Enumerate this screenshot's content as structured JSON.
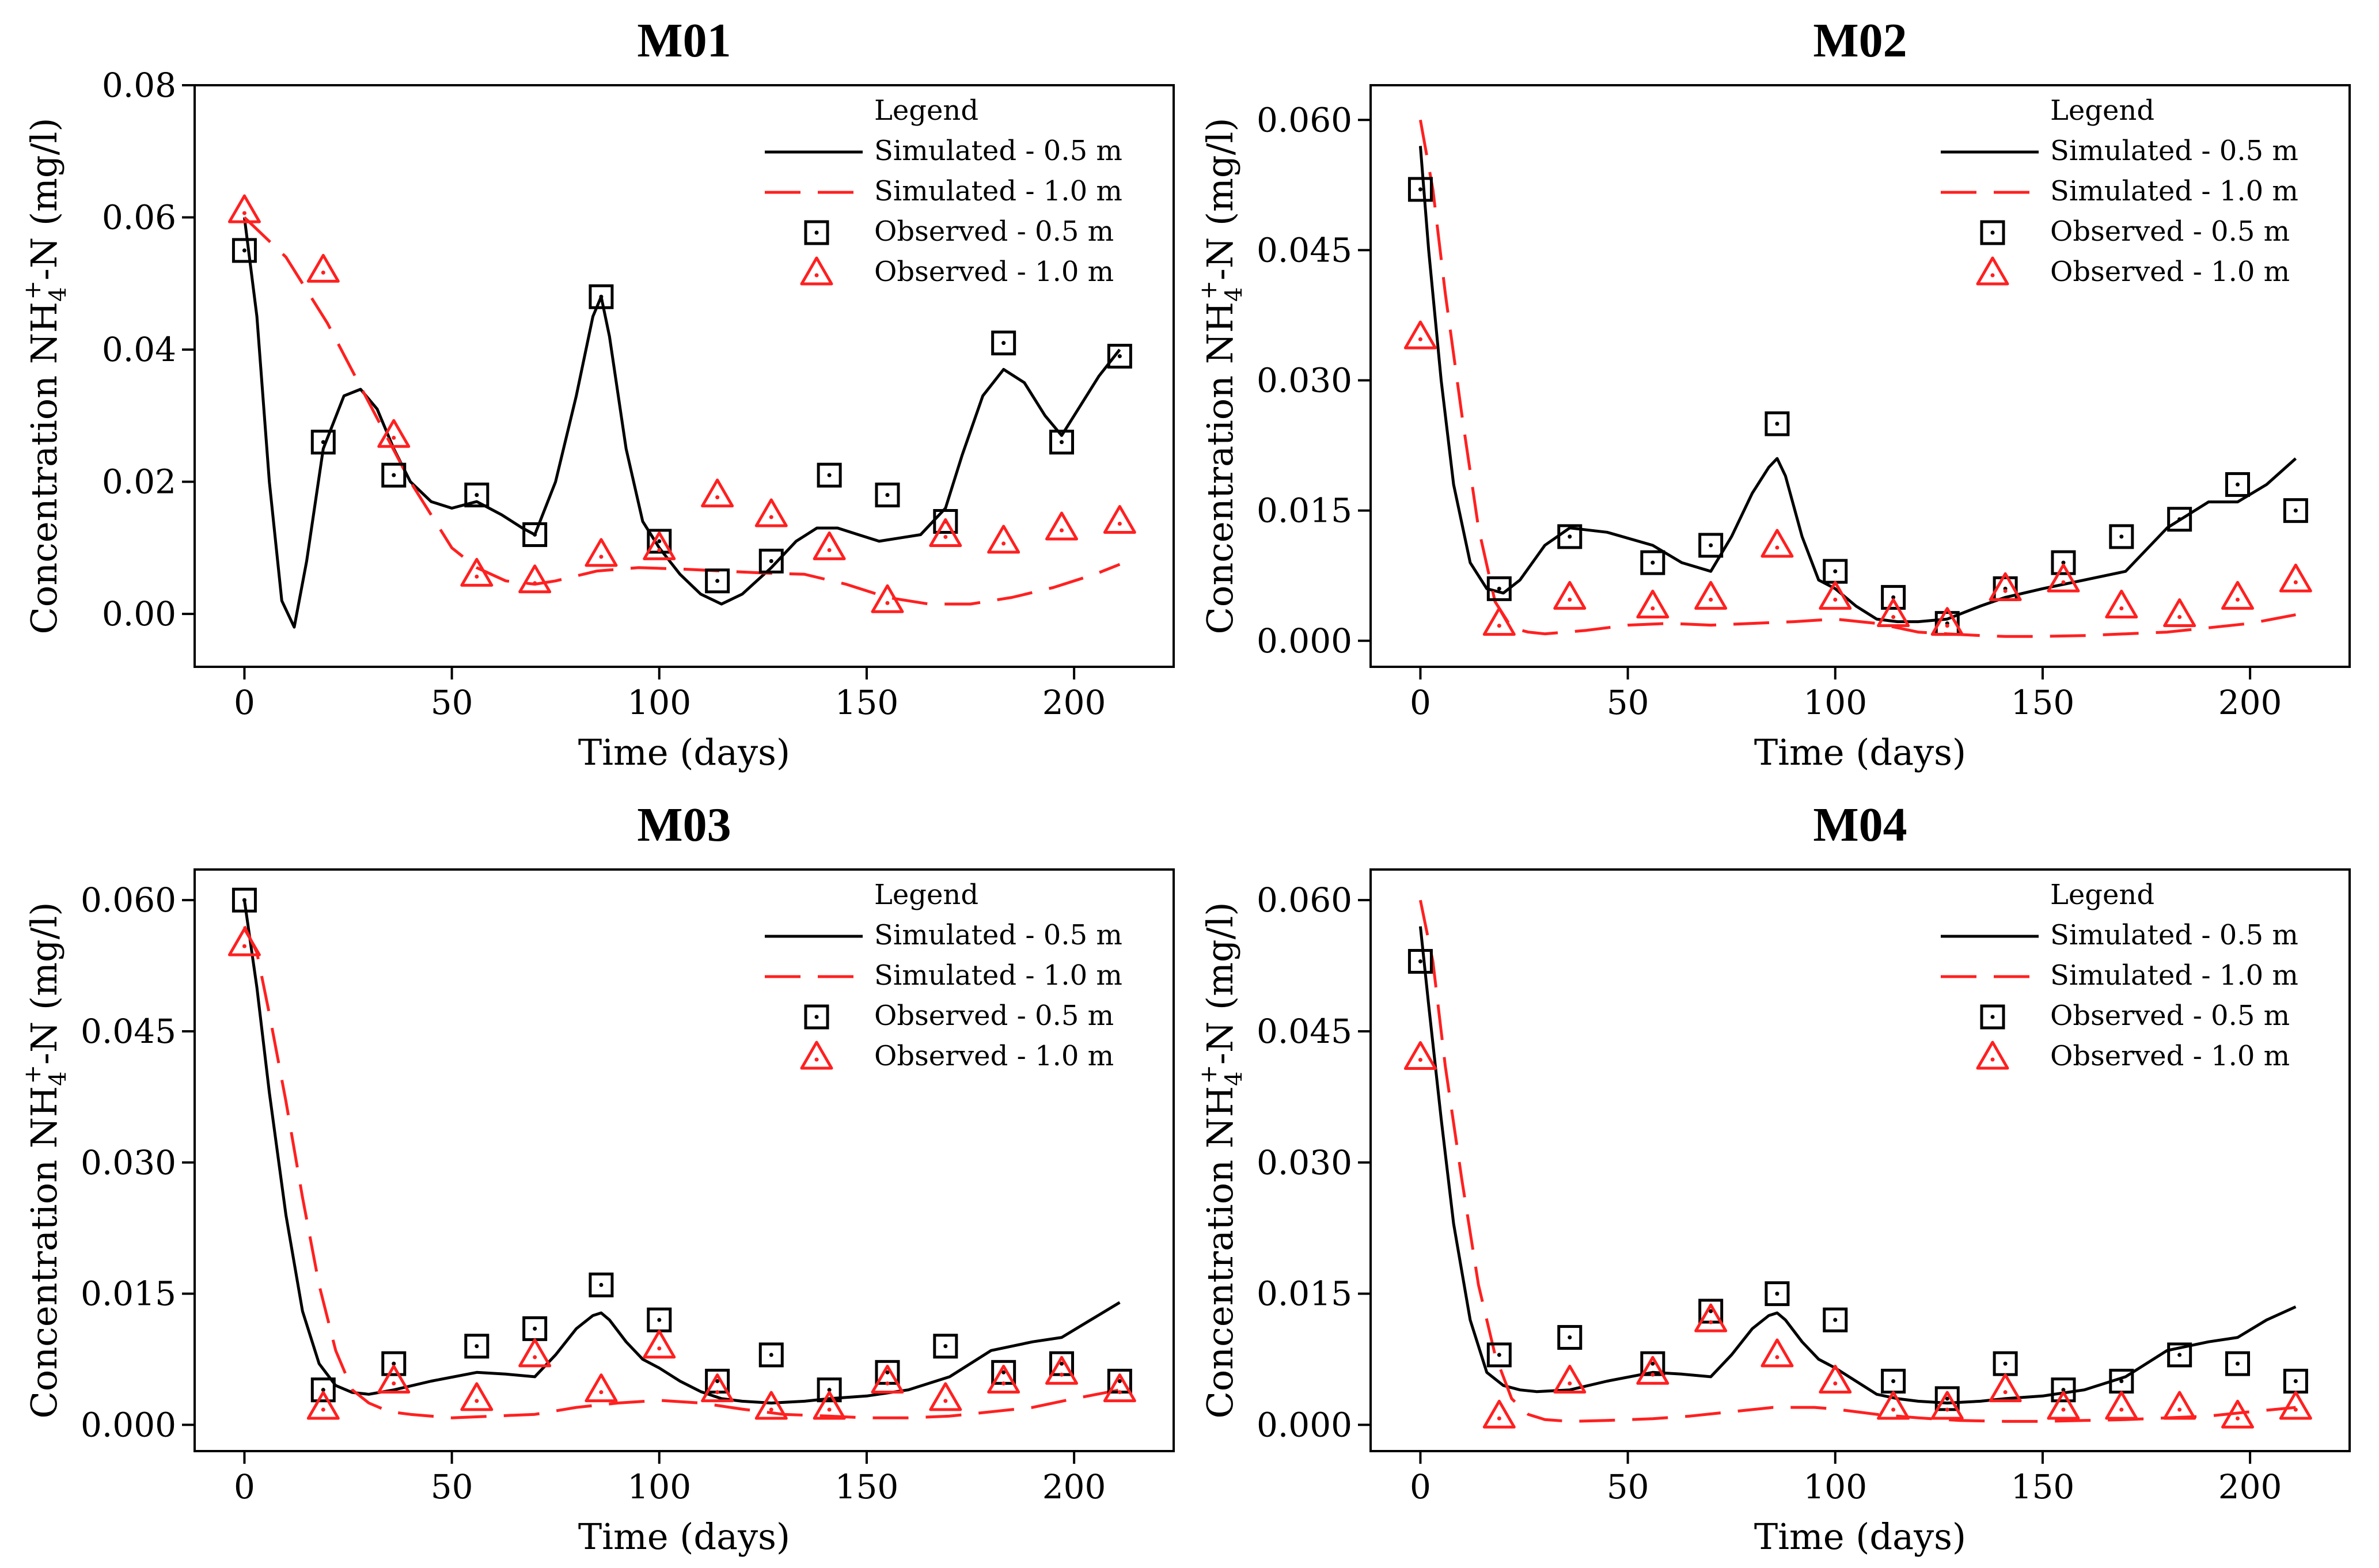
{
  "colors": {
    "sim_05": "#000000",
    "sim_10": "#ff2020",
    "obs_05": "#000000",
    "obs_10": "#ff2020"
  },
  "legend": {
    "title": "Legend",
    "entries": [
      "Simulated - 0.5 m",
      "Simulated - 1.0 m",
      "Observed - 0.5 m",
      "Observed - 1.0 m"
    ]
  },
  "chart_data": [
    {
      "type": "line",
      "title": "M01",
      "xlabel": "Time (days)",
      "ylabel": "Concentration NH4+-N (mg/l)",
      "xlim": [
        -12,
        224
      ],
      "ylim": [
        -0.008,
        0.08
      ],
      "xticks": [
        0,
        50,
        100,
        150,
        200
      ],
      "yticks": [
        0.0,
        0.02,
        0.04,
        0.06,
        0.08
      ],
      "ytick_labels": [
        "0.00",
        "0.02",
        "0.04",
        "0.06",
        "0.08"
      ],
      "series": [
        {
          "name": "Simulated - 0.5 m",
          "kind": "line",
          "style": "solid",
          "x": [
            0,
            3,
            6,
            9,
            12,
            15,
            19,
            24,
            28,
            32,
            36,
            40,
            45,
            50,
            56,
            62,
            67,
            70,
            75,
            80,
            84,
            86,
            88,
            92,
            96,
            100,
            105,
            110,
            115,
            120,
            127,
            133,
            138,
            143,
            148,
            153,
            158,
            163,
            169,
            173,
            178,
            183,
            188,
            193,
            197,
            201,
            206,
            211
          ],
          "y": [
            0.06,
            0.045,
            0.02,
            0.002,
            -0.002,
            0.008,
            0.025,
            0.033,
            0.034,
            0.031,
            0.025,
            0.02,
            0.017,
            0.016,
            0.017,
            0.015,
            0.013,
            0.012,
            0.02,
            0.033,
            0.045,
            0.048,
            0.042,
            0.025,
            0.014,
            0.01,
            0.006,
            0.003,
            0.0015,
            0.003,
            0.007,
            0.011,
            0.013,
            0.013,
            0.012,
            0.011,
            0.0115,
            0.012,
            0.016,
            0.024,
            0.033,
            0.037,
            0.035,
            0.03,
            0.027,
            0.031,
            0.036,
            0.04
          ]
        },
        {
          "name": "Simulated - 1.0 m",
          "kind": "line",
          "style": "dashed",
          "x": [
            0,
            10,
            20,
            30,
            40,
            50,
            56,
            63,
            70,
            75,
            85,
            95,
            105,
            115,
            125,
            135,
            145,
            155,
            165,
            175,
            185,
            195,
            205,
            211
          ],
          "y": [
            0.06,
            0.054,
            0.044,
            0.032,
            0.02,
            0.01,
            0.007,
            0.005,
            0.0045,
            0.005,
            0.0065,
            0.007,
            0.0068,
            0.0065,
            0.0062,
            0.006,
            0.0045,
            0.0025,
            0.0015,
            0.0015,
            0.0025,
            0.004,
            0.006,
            0.0075
          ]
        },
        {
          "name": "Observed - 0.5 m",
          "kind": "marker",
          "marker": "square",
          "x": [
            0,
            19,
            36,
            56,
            70,
            86,
            100,
            114,
            127,
            141,
            155,
            169,
            183,
            197,
            211
          ],
          "y": [
            0.055,
            0.026,
            0.021,
            0.018,
            0.012,
            0.048,
            0.011,
            0.005,
            0.008,
            0.021,
            0.018,
            0.014,
            0.041,
            0.026,
            0.039
          ]
        },
        {
          "name": "Observed - 1.0 m",
          "kind": "marker",
          "marker": "triangle",
          "x": [
            0,
            19,
            36,
            56,
            70,
            86,
            100,
            114,
            127,
            141,
            155,
            169,
            183,
            197,
            211
          ],
          "y": [
            0.061,
            0.052,
            0.027,
            0.006,
            0.005,
            0.009,
            0.01,
            0.018,
            0.015,
            0.01,
            0.002,
            0.012,
            0.011,
            0.013,
            0.014
          ]
        }
      ]
    },
    {
      "type": "line",
      "title": "M02",
      "xlabel": "Time (days)",
      "ylabel": "Concentration NH4+-N (mg/l)",
      "xlim": [
        -12,
        224
      ],
      "ylim": [
        -0.003,
        0.064
      ],
      "xticks": [
        0,
        50,
        100,
        150,
        200
      ],
      "yticks": [
        0.0,
        0.015,
        0.03,
        0.045,
        0.06
      ],
      "ytick_labels": [
        "0.000",
        "0.015",
        "0.030",
        "0.045",
        "0.060"
      ],
      "series": [
        {
          "name": "Simulated - 0.5 m",
          "kind": "line",
          "style": "solid",
          "x": [
            0,
            2,
            5,
            8,
            12,
            16,
            20,
            24,
            30,
            36,
            45,
            56,
            63,
            70,
            75,
            80,
            84,
            86,
            88,
            92,
            96,
            100,
            105,
            110,
            115,
            120,
            127,
            135,
            141,
            150,
            160,
            170,
            180,
            190,
            197,
            204,
            211
          ],
          "y": [
            0.057,
            0.045,
            0.03,
            0.018,
            0.009,
            0.006,
            0.0055,
            0.007,
            0.011,
            0.013,
            0.0125,
            0.011,
            0.009,
            0.008,
            0.012,
            0.017,
            0.02,
            0.021,
            0.019,
            0.012,
            0.007,
            0.006,
            0.004,
            0.0025,
            0.0022,
            0.0022,
            0.0025,
            0.004,
            0.005,
            0.006,
            0.007,
            0.008,
            0.013,
            0.016,
            0.016,
            0.018,
            0.021
          ]
        },
        {
          "name": "Simulated - 1.0 m",
          "kind": "line",
          "style": "dashed",
          "x": [
            0,
            3,
            6,
            10,
            14,
            18,
            22,
            26,
            30,
            40,
            50,
            60,
            70,
            80,
            90,
            100,
            110,
            120,
            127,
            135,
            141,
            150,
            160,
            170,
            180,
            190,
            200,
            211
          ],
          "y": [
            0.06,
            0.052,
            0.04,
            0.026,
            0.013,
            0.0045,
            0.0015,
            0.001,
            0.0008,
            0.0012,
            0.0018,
            0.002,
            0.0018,
            0.002,
            0.0022,
            0.0025,
            0.002,
            0.001,
            0.0008,
            0.0006,
            0.0005,
            0.0005,
            0.0006,
            0.0008,
            0.001,
            0.0015,
            0.002,
            0.003
          ]
        },
        {
          "name": "Observed - 0.5 m",
          "kind": "marker",
          "marker": "square",
          "x": [
            0,
            19,
            36,
            56,
            70,
            86,
            100,
            114,
            127,
            141,
            155,
            169,
            183,
            197,
            211
          ],
          "y": [
            0.052,
            0.006,
            0.012,
            0.009,
            0.011,
            0.025,
            0.008,
            0.005,
            0.002,
            0.006,
            0.009,
            0.012,
            0.014,
            0.018,
            0.015
          ]
        },
        {
          "name": "Observed - 1.0 m",
          "kind": "marker",
          "marker": "triangle",
          "x": [
            0,
            19,
            36,
            56,
            70,
            86,
            100,
            114,
            127,
            141,
            155,
            169,
            183,
            197,
            211
          ],
          "y": [
            0.035,
            0.002,
            0.005,
            0.004,
            0.005,
            0.011,
            0.005,
            0.003,
            0.002,
            0.006,
            0.007,
            0.004,
            0.003,
            0.005,
            0.007
          ]
        }
      ]
    },
    {
      "type": "line",
      "title": "M03",
      "xlabel": "Time (days)",
      "ylabel": "Concentration NH4+-N (mg/l)",
      "xlim": [
        -12,
        224
      ],
      "ylim": [
        -0.003,
        0.0635
      ],
      "xticks": [
        0,
        50,
        100,
        150,
        200
      ],
      "yticks": [
        0.0,
        0.015,
        0.03,
        0.045,
        0.06
      ],
      "ytick_labels": [
        "0.000",
        "0.015",
        "0.030",
        "0.045",
        "0.060"
      ],
      "series": [
        {
          "name": "Simulated - 0.5 m",
          "kind": "line",
          "style": "solid",
          "x": [
            0,
            3,
            6,
            10,
            14,
            18,
            22,
            26,
            30,
            36,
            45,
            56,
            63,
            70,
            75,
            80,
            84,
            86,
            88,
            92,
            96,
            100,
            105,
            110,
            115,
            120,
            127,
            135,
            141,
            150,
            160,
            170,
            180,
            190,
            197,
            204,
            211
          ],
          "y": [
            0.06,
            0.05,
            0.038,
            0.024,
            0.013,
            0.007,
            0.0045,
            0.0037,
            0.0035,
            0.004,
            0.005,
            0.006,
            0.0058,
            0.0055,
            0.008,
            0.011,
            0.0125,
            0.0128,
            0.012,
            0.0095,
            0.0075,
            0.0065,
            0.005,
            0.0038,
            0.003,
            0.0027,
            0.0025,
            0.0027,
            0.003,
            0.0033,
            0.004,
            0.0055,
            0.0085,
            0.0095,
            0.01,
            0.012,
            0.014
          ]
        },
        {
          "name": "Simulated - 1.0 m",
          "kind": "line",
          "style": "dashed",
          "x": [
            0,
            3,
            6,
            10,
            14,
            18,
            22,
            26,
            30,
            35,
            40,
            50,
            60,
            70,
            80,
            90,
            100,
            110,
            120,
            130,
            141,
            150,
            160,
            170,
            180,
            190,
            200,
            211
          ],
          "y": [
            0.057,
            0.054,
            0.047,
            0.037,
            0.026,
            0.016,
            0.0085,
            0.004,
            0.0025,
            0.0015,
            0.0012,
            0.0008,
            0.001,
            0.0012,
            0.002,
            0.0025,
            0.0028,
            0.0025,
            0.0018,
            0.0012,
            0.001,
            0.0008,
            0.0008,
            0.001,
            0.0015,
            0.002,
            0.003,
            0.004
          ]
        },
        {
          "name": "Observed - 0.5 m",
          "kind": "marker",
          "marker": "square",
          "x": [
            0,
            19,
            36,
            56,
            70,
            86,
            100,
            114,
            127,
            141,
            155,
            169,
            183,
            197,
            211
          ],
          "y": [
            0.06,
            0.004,
            0.007,
            0.009,
            0.011,
            0.016,
            0.012,
            0.005,
            0.008,
            0.004,
            0.006,
            0.009,
            0.006,
            0.007,
            0.005
          ]
        },
        {
          "name": "Observed - 1.0 m",
          "kind": "marker",
          "marker": "triangle",
          "x": [
            0,
            19,
            36,
            56,
            70,
            86,
            100,
            114,
            127,
            141,
            155,
            169,
            183,
            197,
            211
          ],
          "y": [
            0.055,
            0.002,
            0.005,
            0.003,
            0.008,
            0.004,
            0.009,
            0.004,
            0.002,
            0.002,
            0.005,
            0.003,
            0.005,
            0.006,
            0.004
          ]
        }
      ]
    },
    {
      "type": "line",
      "title": "M04",
      "xlabel": "Time (days)",
      "ylabel": "Concentration NH4+-N (mg/l)",
      "xlim": [
        -12,
        224
      ],
      "ylim": [
        -0.003,
        0.0635
      ],
      "xticks": [
        0,
        50,
        100,
        150,
        200
      ],
      "yticks": [
        0.0,
        0.015,
        0.03,
        0.045,
        0.06
      ],
      "ytick_labels": [
        "0.000",
        "0.015",
        "0.030",
        "0.045",
        "0.060"
      ],
      "series": [
        {
          "name": "Simulated - 0.5 m",
          "kind": "line",
          "style": "solid",
          "x": [
            0,
            2,
            5,
            8,
            12,
            16,
            20,
            24,
            28,
            36,
            45,
            56,
            63,
            70,
            75,
            80,
            84,
            86,
            88,
            92,
            96,
            100,
            105,
            110,
            115,
            120,
            127,
            135,
            141,
            150,
            160,
            170,
            180,
            190,
            197,
            204,
            211
          ],
          "y": [
            0.057,
            0.048,
            0.035,
            0.023,
            0.012,
            0.006,
            0.0045,
            0.004,
            0.0038,
            0.004,
            0.005,
            0.006,
            0.0058,
            0.0055,
            0.008,
            0.011,
            0.0125,
            0.0128,
            0.012,
            0.0095,
            0.0075,
            0.0065,
            0.005,
            0.0035,
            0.003,
            0.0027,
            0.0025,
            0.0027,
            0.003,
            0.0033,
            0.004,
            0.0055,
            0.0085,
            0.0095,
            0.01,
            0.012,
            0.0135
          ]
        },
        {
          "name": "Simulated - 1.0 m",
          "kind": "line",
          "style": "dashed",
          "x": [
            0,
            3,
            6,
            10,
            14,
            18,
            22,
            26,
            30,
            36,
            45,
            56,
            65,
            75,
            85,
            95,
            100,
            110,
            120,
            130,
            141,
            150,
            160,
            170,
            180,
            190,
            200,
            211
          ],
          "y": [
            0.06,
            0.053,
            0.041,
            0.028,
            0.016,
            0.008,
            0.003,
            0.0012,
            0.0006,
            0.0004,
            0.0005,
            0.0007,
            0.001,
            0.0015,
            0.002,
            0.002,
            0.0018,
            0.0012,
            0.0008,
            0.0005,
            0.0004,
            0.0004,
            0.0005,
            0.0006,
            0.0008,
            0.001,
            0.0015,
            0.002
          ]
        },
        {
          "name": "Observed - 0.5 m",
          "kind": "marker",
          "marker": "square",
          "x": [
            0,
            19,
            36,
            56,
            70,
            86,
            100,
            114,
            127,
            141,
            155,
            169,
            183,
            197,
            211
          ],
          "y": [
            0.053,
            0.008,
            0.01,
            0.007,
            0.013,
            0.015,
            0.012,
            0.005,
            0.003,
            0.007,
            0.004,
            0.005,
            0.008,
            0.007,
            0.005
          ]
        },
        {
          "name": "Observed - 1.0 m",
          "kind": "marker",
          "marker": "triangle",
          "x": [
            0,
            19,
            36,
            56,
            70,
            86,
            100,
            114,
            127,
            141,
            155,
            169,
            183,
            197,
            211
          ],
          "y": [
            0.042,
            0.001,
            0.005,
            0.006,
            0.012,
            0.008,
            0.005,
            0.002,
            0.002,
            0.004,
            0.002,
            0.002,
            0.002,
            0.001,
            0.002
          ]
        }
      ]
    }
  ]
}
